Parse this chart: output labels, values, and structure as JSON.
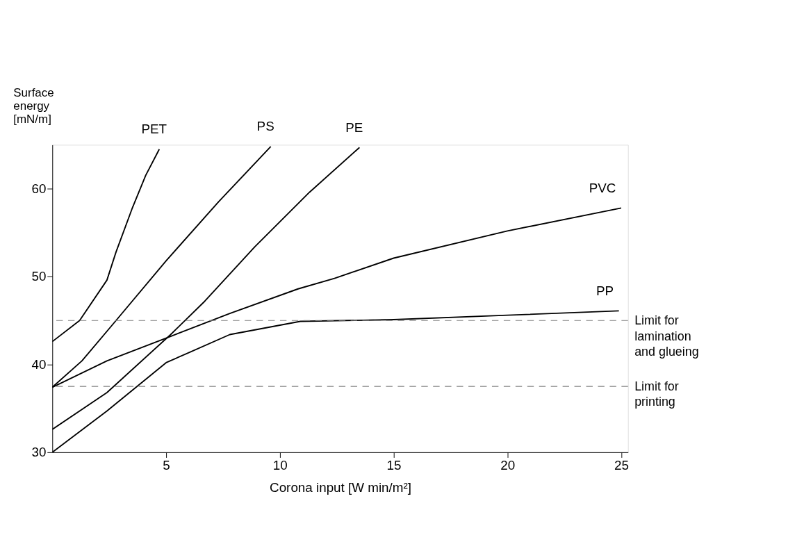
{
  "chart_data": {
    "type": "line",
    "xlabel": "Corona input [W min/m²]",
    "ylabel": "Surface energy [mN/m]",
    "xlim": [
      0,
      25.3
    ],
    "ylim": [
      30,
      65
    ],
    "xticks": [
      5,
      10,
      15,
      20,
      25
    ],
    "yticks": [
      30,
      40,
      50,
      60
    ],
    "grid": false,
    "marker": "none",
    "line_style": "solid",
    "series": [
      {
        "name": "PET",
        "color": "#000000",
        "x": [
          0,
          1.2,
          2.4,
          2.8,
          3.5,
          4.1,
          4.7
        ],
        "values": [
          42.6,
          45,
          49.6,
          52.8,
          57.7,
          61.5,
          64.5
        ]
      },
      {
        "name": "PS",
        "color": "#000000",
        "x": [
          0,
          1.3,
          2.8,
          5,
          7.3,
          9.6
        ],
        "values": [
          37.4,
          40.4,
          45,
          51.8,
          58.5,
          64.8
        ]
      },
      {
        "name": "PE",
        "color": "#000000",
        "x": [
          0,
          2.4,
          5.2,
          6.7,
          8.9,
          11.3,
          13.5
        ],
        "values": [
          32.6,
          36.8,
          43.4,
          47.2,
          53.4,
          59.6,
          64.7
        ]
      },
      {
        "name": "PVC",
        "color": "#000000",
        "x": [
          0,
          2.4,
          5.2,
          7.8,
          10.8,
          12.4,
          15,
          20,
          25
        ],
        "values": [
          37.4,
          40.4,
          43.2,
          45.8,
          48.6,
          49.8,
          52.1,
          55.2,
          57.8
        ]
      },
      {
        "name": "PP",
        "color": "#000000",
        "x": [
          0,
          2.4,
          5,
          7.8,
          10.9,
          15,
          20,
          24.9
        ],
        "values": [
          30,
          34.7,
          40.2,
          43.4,
          44.9,
          45.1,
          45.6,
          46.1
        ]
      }
    ],
    "ref_lines": [
      {
        "axis": "y",
        "value": 45,
        "label": "Limit for lamination and glueing",
        "color": "#808080",
        "line_style": "dashed"
      },
      {
        "axis": "y",
        "value": 37.5,
        "label": "Limit for printing",
        "color": "#808080",
        "line_style": "dashed"
      }
    ]
  }
}
